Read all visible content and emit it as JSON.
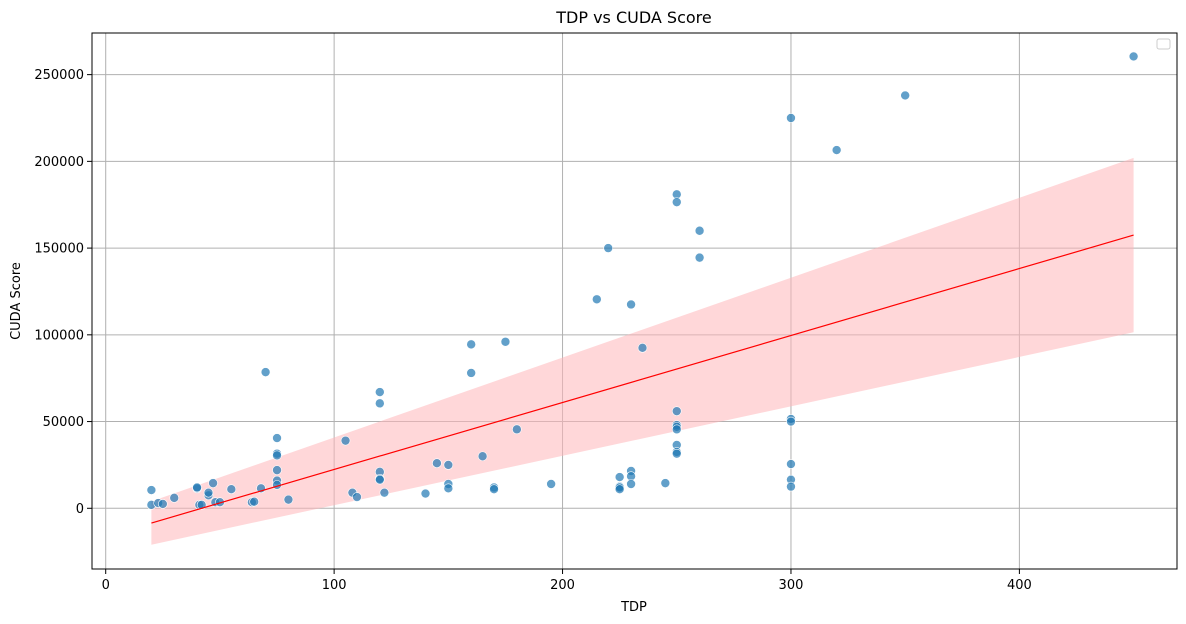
{
  "chart_data": {
    "type": "scatter",
    "title": "TDP vs CUDA Score",
    "xlabel": "TDP",
    "ylabel": "CUDA Score",
    "xlim": [
      -6,
      469
    ],
    "ylim": [
      -35000,
      274000
    ],
    "xticks": [
      0,
      100,
      200,
      300,
      400
    ],
    "yticks": [
      0,
      50000,
      100000,
      150000,
      200000,
      250000
    ],
    "grid": true,
    "legend": "top-right, empty",
    "colors": {
      "points": "#1f77b4",
      "fit_line": "#ff0000",
      "confidence_band": "#ffb6ba"
    },
    "points": [
      [
        20,
        2000
      ],
      [
        20,
        10500
      ],
      [
        23,
        3000
      ],
      [
        25,
        2500
      ],
      [
        30,
        6000
      ],
      [
        40,
        11500
      ],
      [
        40,
        12000
      ],
      [
        41,
        2000
      ],
      [
        42,
        2000
      ],
      [
        45,
        7500
      ],
      [
        45,
        9000
      ],
      [
        47,
        14500
      ],
      [
        48,
        3500
      ],
      [
        50,
        3500
      ],
      [
        55,
        11000
      ],
      [
        64,
        3500
      ],
      [
        65,
        3800
      ],
      [
        68,
        11500
      ],
      [
        70,
        78500
      ],
      [
        75,
        40500
      ],
      [
        75,
        31500
      ],
      [
        75,
        30500
      ],
      [
        75,
        22000
      ],
      [
        75,
        16000
      ],
      [
        75,
        13500
      ],
      [
        80,
        5000
      ],
      [
        105,
        39000
      ],
      [
        108,
        9000
      ],
      [
        110,
        6500
      ],
      [
        120,
        67000
      ],
      [
        120,
        60500
      ],
      [
        120,
        21000
      ],
      [
        120,
        17000
      ],
      [
        120,
        16500
      ],
      [
        122,
        9000
      ],
      [
        140,
        8500
      ],
      [
        145,
        26000
      ],
      [
        150,
        25000
      ],
      [
        150,
        14000
      ],
      [
        150,
        11500
      ],
      [
        160,
        94500
      ],
      [
        160,
        78000
      ],
      [
        165,
        30000
      ],
      [
        170,
        12000
      ],
      [
        170,
        11000
      ],
      [
        175,
        96000
      ],
      [
        180,
        45500
      ],
      [
        195,
        14000
      ],
      [
        215,
        120500
      ],
      [
        220,
        150000
      ],
      [
        225,
        18000
      ],
      [
        225,
        12500
      ],
      [
        225,
        12000
      ],
      [
        225,
        11000
      ],
      [
        230,
        117500
      ],
      [
        230,
        21500
      ],
      [
        230,
        18500
      ],
      [
        230,
        14000
      ],
      [
        235,
        92500
      ],
      [
        245,
        14500
      ],
      [
        250,
        181000
      ],
      [
        250,
        176500
      ],
      [
        250,
        56000
      ],
      [
        250,
        48000
      ],
      [
        250,
        47000
      ],
      [
        250,
        45500
      ],
      [
        250,
        36500
      ],
      [
        250,
        32500
      ],
      [
        250,
        31500
      ],
      [
        260,
        160000
      ],
      [
        260,
        144500
      ],
      [
        300,
        225000
      ],
      [
        300,
        51500
      ],
      [
        300,
        50000
      ],
      [
        300,
        25500
      ],
      [
        300,
        16500
      ],
      [
        300,
        12500
      ],
      [
        320,
        206500
      ],
      [
        350,
        238000
      ],
      [
        450,
        260500
      ]
    ],
    "fit_line": {
      "x": [
        20,
        450
      ],
      "y": [
        -8500,
        157500
      ]
    },
    "confidence_band": {
      "x": [
        20,
        450
      ],
      "upper": [
        4000,
        202000
      ],
      "lower": [
        -21000,
        101500
      ]
    }
  }
}
